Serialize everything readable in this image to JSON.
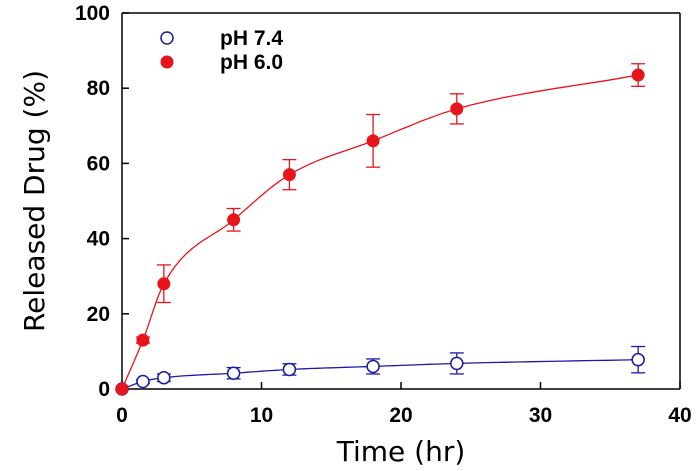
{
  "chart_data": {
    "type": "scatter",
    "title": "",
    "xlabel": "Time (hr)",
    "ylabel": "Released Drug (%)",
    "xlim": [
      0,
      40
    ],
    "ylim": [
      0,
      100
    ],
    "x_ticks": [
      "0",
      "10",
      "20",
      "30",
      "40"
    ],
    "y_ticks": [
      "0",
      "20",
      "40",
      "60",
      "80",
      "100"
    ],
    "grid": false,
    "legend_position": "top-left",
    "series": [
      {
        "name": "pH 7.4",
        "marker": "open-circle",
        "color": "#1a1aa8",
        "x": [
          0,
          1.5,
          3,
          8,
          12,
          18,
          24,
          37
        ],
        "y": [
          0,
          2,
          3,
          4.2,
          5.2,
          6,
          6.8,
          7.8
        ],
        "error": [
          0,
          0.5,
          1,
          1.5,
          1.5,
          2,
          2.8,
          3.5
        ]
      },
      {
        "name": "pH 6.0",
        "marker": "filled-circle",
        "color": "#e8141c",
        "x": [
          0,
          1.5,
          3,
          8,
          12,
          18,
          24,
          37
        ],
        "y": [
          0,
          13,
          28,
          45,
          57,
          66,
          74.5,
          83.5
        ],
        "error": [
          0,
          0.8,
          5,
          3,
          4,
          7,
          4,
          3
        ]
      }
    ]
  }
}
